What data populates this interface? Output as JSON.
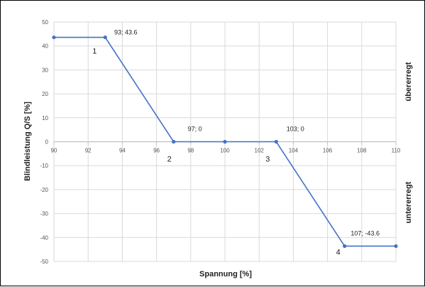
{
  "chart_data": {
    "type": "line",
    "title": "",
    "xlabel": "Spannung [%]",
    "ylabel": "Blindleistung Q/S [%]",
    "xlim": [
      90,
      110
    ],
    "ylim": [
      -50,
      50
    ],
    "xticks": [
      90,
      92,
      94,
      96,
      98,
      100,
      102,
      104,
      106,
      108,
      110
    ],
    "yticks": [
      50,
      40,
      30,
      20,
      10,
      0,
      -10,
      -20,
      -30,
      -40,
      -50
    ],
    "grid": true,
    "series": [
      {
        "x": [
          90,
          93,
          97,
          100,
          103,
          107,
          110
        ],
        "y": [
          43.6,
          43.6,
          0,
          0,
          0,
          -43.6,
          -43.6
        ]
      }
    ],
    "annotations": [
      {
        "text": "93; 43.6",
        "x": 93,
        "y": 43.6
      },
      {
        "text": "97; 0",
        "x": 97,
        "y": 0
      },
      {
        "text": "103; 0",
        "x": 103,
        "y": 0
      },
      {
        "text": "107; -43.6",
        "x": 107,
        "y": -43.6
      }
    ],
    "point_numbers": [
      {
        "text": "1",
        "x": 93,
        "y": 43.6
      },
      {
        "text": "2",
        "x": 97,
        "y": 0
      },
      {
        "text": "3",
        "x": 103,
        "y": 0
      },
      {
        "text": "4",
        "x": 107,
        "y": -43.6
      }
    ],
    "side_labels": {
      "upper": "übererregt",
      "lower": "untererregt"
    },
    "colors": {
      "series": "#4472c4",
      "grid": "#d9d9d9",
      "axis": "#bfbfbf"
    }
  }
}
